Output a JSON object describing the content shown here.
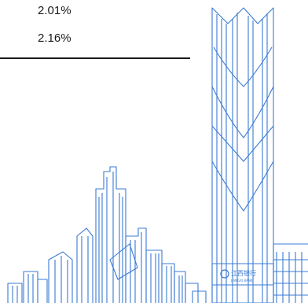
{
  "table": {
    "rows": [
      {
        "value": "2.01%"
      },
      {
        "value": "2.16%"
      }
    ]
  },
  "illustration": {
    "sign_text": "江西银行",
    "sign_subtext": "JIANGXI BANK",
    "line_color": "#3a7bd5"
  }
}
